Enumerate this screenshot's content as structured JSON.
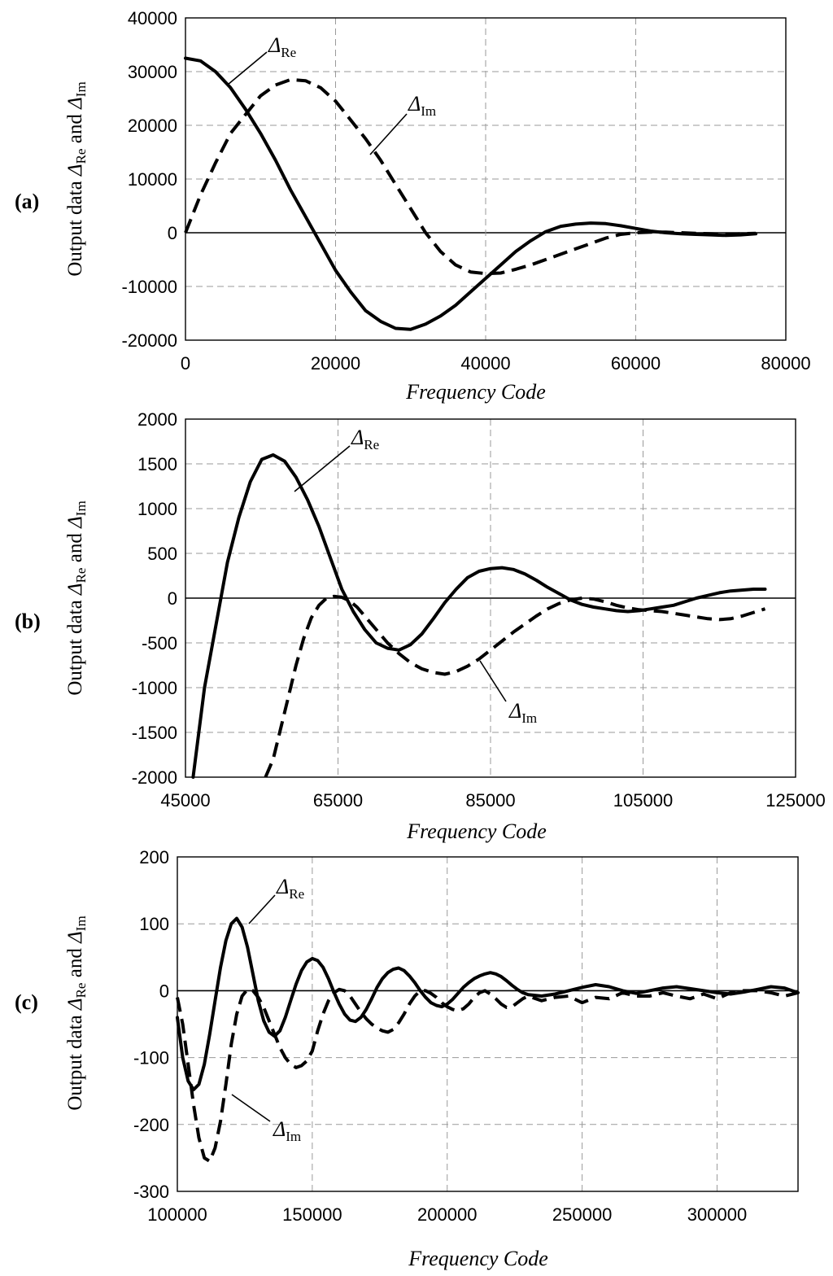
{
  "chart_data": [
    {
      "type": "line",
      "panel_label": "(a)",
      "xlabel": "Frequency Code",
      "ylabel": {
        "prefix": "Output data ",
        "sym": "Δ",
        "sub_re": "Re",
        "mid": " and ",
        "sub_im": "Im"
      },
      "xlim": [
        0,
        80000
      ],
      "ylim": [
        -20000,
        40000
      ],
      "x_ticks": [
        0,
        20000,
        40000,
        60000,
        80000
      ],
      "y_ticks": [
        -20000,
        -10000,
        0,
        10000,
        20000,
        30000,
        40000
      ],
      "x_tick_labels": [
        "0",
        "20000",
        "40000",
        "60000",
        "80000"
      ],
      "y_tick_labels": [
        "-20000",
        "-10000",
        "0",
        "10000",
        "20000",
        "30000",
        "40000"
      ],
      "series": [
        {
          "name": "ΔRe",
          "style": "solid",
          "x": [
            0,
            2000,
            4000,
            6000,
            8000,
            10000,
            12000,
            14000,
            16000,
            18000,
            20000,
            22000,
            24000,
            26000,
            28000,
            30000,
            32000,
            34000,
            36000,
            38000,
            40000,
            42000,
            44000,
            46000,
            48000,
            50000,
            52000,
            54000,
            56000,
            58000,
            60000,
            62000,
            64000,
            66000,
            68000,
            70000,
            72000,
            74000,
            76000
          ],
          "values": [
            32500,
            32000,
            30000,
            27000,
            23000,
            18500,
            13500,
            8000,
            3000,
            -2000,
            -7000,
            -11000,
            -14500,
            -16500,
            -17800,
            -18000,
            -17000,
            -15500,
            -13500,
            -11000,
            -8500,
            -6000,
            -3500,
            -1500,
            200,
            1200,
            1600,
            1800,
            1700,
            1300,
            800,
            300,
            0,
            -200,
            -300,
            -400,
            -500,
            -400,
            -200
          ]
        },
        {
          "name": "ΔIm",
          "style": "dashed",
          "x": [
            0,
            2000,
            4000,
            6000,
            8000,
            10000,
            12000,
            14000,
            16000,
            18000,
            20000,
            22000,
            24000,
            26000,
            28000,
            30000,
            32000,
            34000,
            36000,
            38000,
            40000,
            42000,
            44000,
            46000,
            48000,
            50000,
            52000,
            54000,
            56000,
            58000,
            60000,
            62000,
            64000,
            66000,
            68000,
            70000,
            72000,
            74000,
            76000
          ],
          "values": [
            0,
            7000,
            13000,
            18500,
            22000,
            25500,
            27500,
            28500,
            28300,
            27000,
            24500,
            21000,
            17500,
            13500,
            9000,
            4500,
            0,
            -3500,
            -6000,
            -7300,
            -7600,
            -7500,
            -6800,
            -6000,
            -5000,
            -4000,
            -3000,
            -2000,
            -1000,
            -300,
            0,
            100,
            100,
            0,
            -100,
            -200,
            -300,
            -200,
            -100
          ]
        }
      ],
      "annotations": [
        {
          "sym": "Δ",
          "sub": "Re"
        },
        {
          "sym": "Δ",
          "sub": "Im"
        }
      ]
    },
    {
      "type": "line",
      "panel_label": "(b)",
      "xlabel": "Frequency Code",
      "ylabel": {
        "prefix": "Output data ",
        "sym": "Δ",
        "sub_re": "Re",
        "mid": " and ",
        "sub_im": "Im"
      },
      "xlim": [
        45000,
        125000
      ],
      "ylim": [
        -2000,
        2000
      ],
      "x_ticks": [
        45000,
        65000,
        85000,
        105000,
        125000
      ],
      "y_ticks": [
        -2000,
        -1500,
        -1000,
        -500,
        0,
        500,
        1000,
        1500,
        2000
      ],
      "x_tick_labels": [
        "45000",
        "65000",
        "85000",
        "105000",
        "125000"
      ],
      "y_tick_labels": [
        "-2000",
        "-1500",
        "-1000",
        "-500",
        "0",
        "500",
        "1000",
        "1500",
        "2000"
      ],
      "series": [
        {
          "name": "ΔRe",
          "style": "solid",
          "x": [
            46000,
            47500,
            49000,
            50500,
            52000,
            53500,
            55000,
            56500,
            58000,
            59500,
            61000,
            62500,
            64000,
            65500,
            67000,
            68500,
            70000,
            71500,
            73000,
            74500,
            76000,
            77500,
            79000,
            80500,
            82000,
            83500,
            85000,
            86500,
            88000,
            89500,
            91000,
            92500,
            94000,
            95500,
            97000,
            98500,
            100000,
            101500,
            103000,
            104500,
            106000,
            107500,
            109000,
            110500,
            112000,
            113500,
            115000,
            116500,
            118000,
            119500,
            121000
          ],
          "values": [
            -2000,
            -1000,
            -300,
            400,
            900,
            1300,
            1550,
            1600,
            1530,
            1350,
            1100,
            800,
            450,
            100,
            -150,
            -350,
            -500,
            -560,
            -580,
            -520,
            -400,
            -230,
            -50,
            100,
            230,
            300,
            330,
            340,
            320,
            270,
            200,
            120,
            50,
            -20,
            -70,
            -100,
            -120,
            -140,
            -150,
            -140,
            -120,
            -100,
            -80,
            -40,
            0,
            30,
            60,
            80,
            90,
            100,
            100
          ]
        },
        {
          "name": "ΔIm",
          "style": "dashed",
          "x": [
            55500,
            56500,
            57500,
            58500,
            59500,
            60500,
            61500,
            62500,
            63500,
            64500,
            65500,
            66500,
            67500,
            68500,
            70000,
            71500,
            73000,
            74500,
            76000,
            77500,
            79000,
            80500,
            82000,
            83500,
            85000,
            86500,
            88000,
            89500,
            91000,
            92500,
            94000,
            95500,
            97000,
            98500,
            100000,
            101500,
            103000,
            104500,
            106000,
            107500,
            109000,
            110500,
            112000,
            113500,
            115000,
            116500,
            118000,
            119500,
            121000
          ],
          "values": [
            -2000,
            -1800,
            -1450,
            -1100,
            -750,
            -450,
            -220,
            -80,
            0,
            20,
            10,
            -30,
            -100,
            -200,
            -350,
            -500,
            -620,
            -720,
            -790,
            -830,
            -850,
            -820,
            -760,
            -680,
            -580,
            -480,
            -380,
            -290,
            -200,
            -120,
            -60,
            -20,
            0,
            -10,
            -40,
            -80,
            -110,
            -130,
            -140,
            -150,
            -170,
            -190,
            -210,
            -230,
            -240,
            -230,
            -200,
            -160,
            -120
          ]
        }
      ],
      "annotations": [
        {
          "sym": "Δ",
          "sub": "Re"
        },
        {
          "sym": "Δ",
          "sub": "Im"
        }
      ]
    },
    {
      "type": "line",
      "panel_label": "(c)",
      "xlabel": "Frequency Code",
      "ylabel": {
        "prefix": "Output data ",
        "sym": "Δ",
        "sub_re": "Re",
        "mid": " and ",
        "sub_im": "Im"
      },
      "xlim": [
        100000,
        330000
      ],
      "ylim": [
        -300,
        200
      ],
      "x_ticks": [
        100000,
        150000,
        200000,
        250000,
        300000
      ],
      "y_ticks": [
        -300,
        -200,
        -100,
        0,
        100,
        200
      ],
      "x_tick_labels": [
        "100000",
        "150000",
        "200000",
        "250000",
        "300000"
      ],
      "y_tick_labels": [
        "-300",
        "-200",
        "-100",
        "0",
        "100",
        "200"
      ],
      "series": [
        {
          "name": "ΔRe",
          "style": "solid",
          "x": [
            100000,
            102000,
            104000,
            106000,
            108000,
            110000,
            112000,
            114000,
            116000,
            118000,
            120000,
            122000,
            124000,
            126000,
            128000,
            130000,
            132000,
            134000,
            136000,
            138000,
            140000,
            142000,
            144000,
            146000,
            148000,
            150000,
            152000,
            154000,
            156000,
            158000,
            160000,
            162000,
            164000,
            166000,
            168000,
            170000,
            172000,
            174000,
            176000,
            178000,
            180000,
            182000,
            184000,
            186000,
            188000,
            190000,
            192000,
            194000,
            196000,
            198000,
            200000,
            202000,
            204000,
            206000,
            208000,
            210000,
            212000,
            214000,
            216000,
            218000,
            220000,
            222000,
            224000,
            226000,
            228000,
            230000,
            235000,
            240000,
            245000,
            250000,
            255000,
            260000,
            265000,
            270000,
            275000,
            280000,
            285000,
            290000,
            295000,
            300000,
            305000,
            310000,
            315000,
            320000,
            325000,
            330000
          ],
          "values": [
            -40,
            -100,
            -135,
            -148,
            -140,
            -110,
            -65,
            -15,
            35,
            75,
            100,
            108,
            95,
            65,
            25,
            -15,
            -45,
            -62,
            -68,
            -60,
            -40,
            -15,
            10,
            30,
            43,
            48,
            45,
            35,
            18,
            -2,
            -20,
            -35,
            -44,
            -46,
            -40,
            -28,
            -12,
            5,
            18,
            27,
            32,
            34,
            30,
            22,
            12,
            0,
            -10,
            -18,
            -22,
            -24,
            -20,
            -13,
            -4,
            5,
            12,
            18,
            22,
            25,
            27,
            25,
            21,
            15,
            8,
            2,
            -3,
            -6,
            -8,
            -5,
            0,
            5,
            9,
            6,
            0,
            -4,
            0,
            4,
            6,
            3,
            0,
            -3,
            -5,
            -2,
            2,
            6,
            4,
            -3
          ]
        },
        {
          "name": "ΔIm",
          "style": "dashed",
          "x": [
            100000,
            102000,
            104000,
            106000,
            108000,
            110000,
            112000,
            114000,
            116000,
            118000,
            120000,
            122000,
            124000,
            126000,
            128000,
            130000,
            132000,
            134000,
            136000,
            138000,
            140000,
            142000,
            144000,
            146000,
            148000,
            150000,
            152000,
            154000,
            156000,
            158000,
            160000,
            162000,
            164000,
            166000,
            168000,
            170000,
            172000,
            174000,
            176000,
            178000,
            180000,
            182000,
            184000,
            186000,
            188000,
            190000,
            192000,
            194000,
            196000,
            198000,
            200000,
            202000,
            204000,
            206000,
            208000,
            210000,
            212000,
            214000,
            216000,
            218000,
            220000,
            222000,
            224000,
            226000,
            228000,
            230000,
            235000,
            240000,
            245000,
            250000,
            255000,
            260000,
            265000,
            270000,
            275000,
            280000,
            285000,
            290000,
            295000,
            300000,
            305000,
            310000,
            315000,
            320000,
            325000,
            330000
          ],
          "values": [
            -10,
            -50,
            -110,
            -170,
            -220,
            -250,
            -255,
            -235,
            -195,
            -140,
            -80,
            -35,
            -8,
            2,
            0,
            -10,
            -25,
            -45,
            -65,
            -85,
            -100,
            -110,
            -115,
            -112,
            -105,
            -90,
            -60,
            -35,
            -15,
            -3,
            2,
            0,
            -8,
            -20,
            -32,
            -42,
            -50,
            -56,
            -60,
            -62,
            -58,
            -48,
            -35,
            -20,
            -8,
            0,
            0,
            -4,
            -10,
            -18,
            -24,
            -28,
            -30,
            -27,
            -20,
            -10,
            -3,
            0,
            -5,
            -12,
            -20,
            -25,
            -24,
            -18,
            -12,
            -8,
            -15,
            -10,
            -8,
            -18,
            -10,
            -12,
            -3,
            -8,
            -8,
            -3,
            -8,
            -12,
            -5,
            -12,
            -3,
            0,
            0,
            -3,
            -8,
            -3
          ]
        }
      ],
      "annotations": [
        {
          "sym": "Δ",
          "sub": "Re"
        },
        {
          "sym": "Δ",
          "sub": "Im"
        }
      ]
    }
  ]
}
